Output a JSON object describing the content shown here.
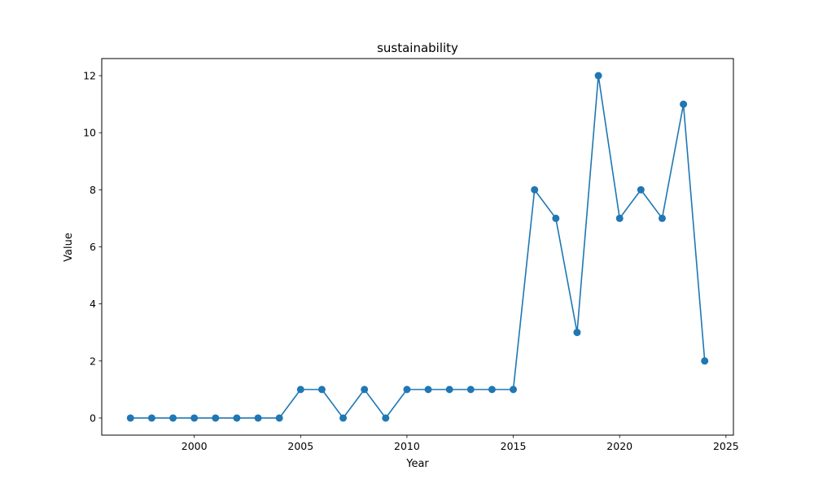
{
  "chart_data": {
    "type": "line",
    "title": "sustainability",
    "xlabel": "Year",
    "ylabel": "Value",
    "xlim": [
      1995.65,
      2025.35
    ],
    "ylim": [
      -0.6,
      12.6
    ],
    "xticks": [
      2000,
      2005,
      2010,
      2015,
      2020,
      2025
    ],
    "yticks": [
      0,
      2,
      4,
      6,
      8,
      10,
      12
    ],
    "grid": false,
    "color": "#1f77b4",
    "series": [
      {
        "x": [
          1997,
          1998,
          1999,
          2000,
          2001,
          2002,
          2003,
          2004,
          2005,
          2006,
          2007,
          2008,
          2009,
          2010,
          2011,
          2012,
          2013,
          2014,
          2015,
          2016,
          2017,
          2018,
          2019,
          2020,
          2021,
          2022,
          2023,
          2024
        ],
        "values": [
          0,
          0,
          0,
          0,
          0,
          0,
          0,
          0,
          1,
          1,
          0,
          1,
          0,
          1,
          1,
          1,
          1,
          1,
          1,
          8,
          7,
          3,
          12,
          7,
          8,
          7,
          11,
          2
        ]
      }
    ]
  }
}
